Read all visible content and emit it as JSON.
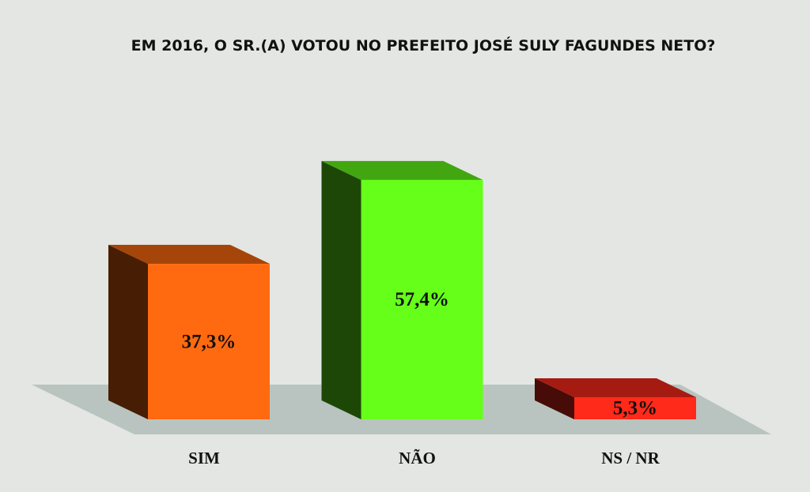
{
  "chart_data": {
    "type": "bar3d",
    "title": "EM 2016, O SR.(A) VOTOU NO PREFEITO JOSÉ SULY FAGUNDES NETO?",
    "categories": [
      "SIM",
      "NÃO",
      "NS / NR"
    ],
    "values": [
      37.3,
      57.4,
      5.3
    ],
    "value_labels": [
      "37,3%",
      "57,4%",
      "5,3%"
    ],
    "colors": [
      "#ff6a10",
      "#66ff1a",
      "#ff2a1a"
    ]
  }
}
